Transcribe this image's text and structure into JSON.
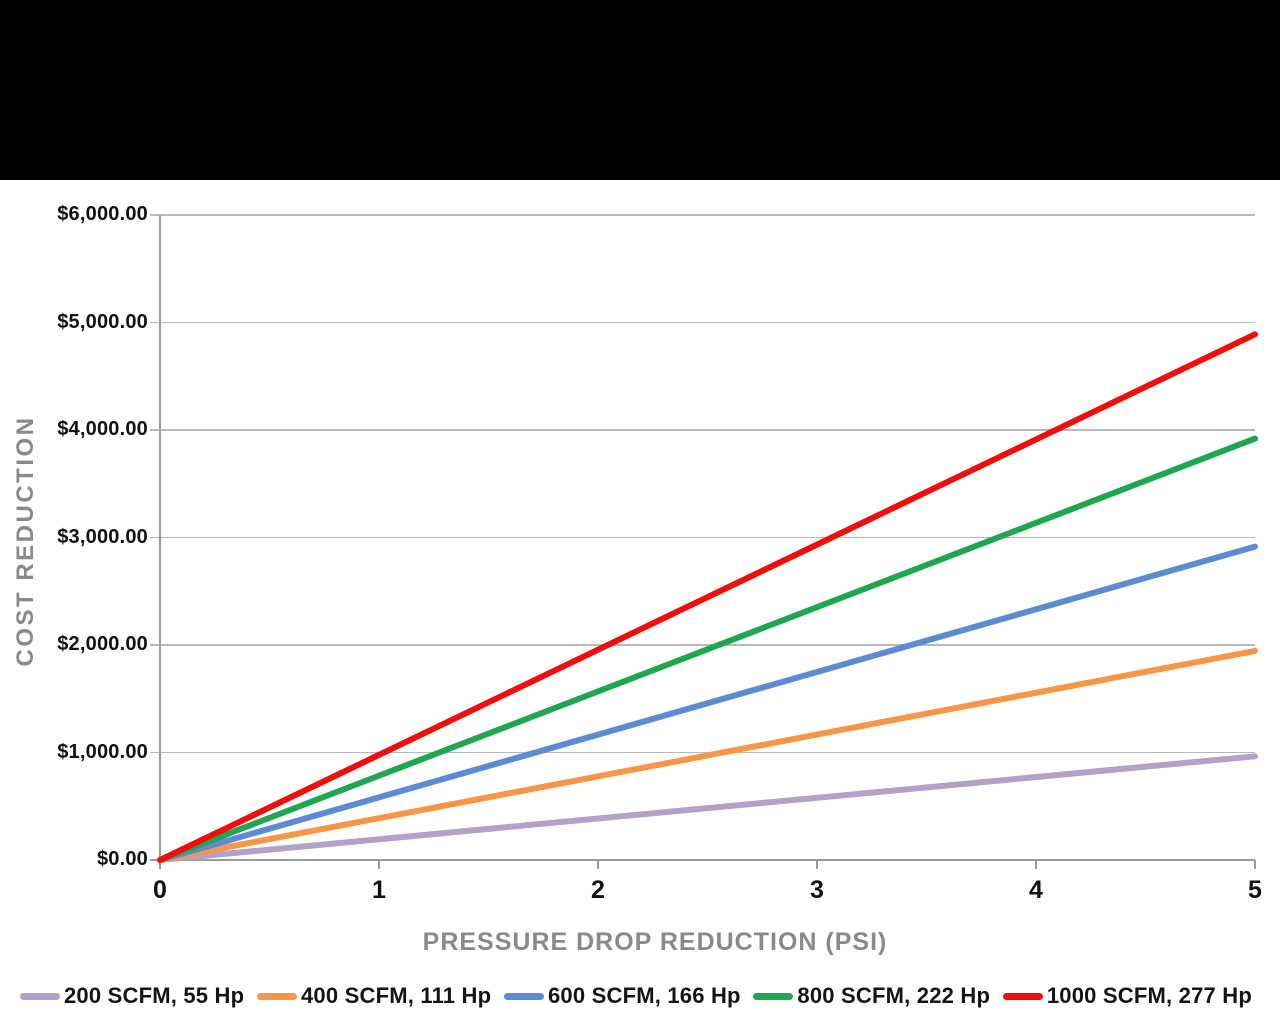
{
  "page": {
    "background": "#ffffff",
    "top_band_color": "#000000"
  },
  "chart_data": {
    "type": "line",
    "title": "",
    "xlabel": "PRESSURE DROP REDUCTION (PSI)",
    "ylabel": "COST REDUCTION",
    "xlim": [
      0,
      5
    ],
    "ylim": [
      0,
      6000
    ],
    "x_ticks": [
      0,
      1,
      2,
      3,
      4,
      5
    ],
    "x_tick_labels": [
      "0",
      "1",
      "2",
      "3",
      "4",
      "5"
    ],
    "y_ticks": [
      0,
      1000,
      2000,
      3000,
      4000,
      5000,
      6000
    ],
    "y_tick_labels": [
      "$0.00",
      "$1,000.00",
      "$2,000.00",
      "$3,000.00",
      "$4,000.00",
      "$5,000.00",
      "$6,000.00"
    ],
    "grid": "horizontal-only",
    "legend_position": "bottom",
    "axis_color": "#9b9b9b",
    "grid_color": "#b9b9b9",
    "axis_title_color": "#8a8a8a",
    "tick_label_color": "#111111",
    "series": [
      {
        "name": "200 SCFM, 55 Hp",
        "color": "#B3A2C7",
        "x": [
          0,
          5
        ],
        "y": [
          0,
          965
        ]
      },
      {
        "name": "400 SCFM, 111 Hp",
        "color": "#F79646",
        "x": [
          0,
          5
        ],
        "y": [
          0,
          1945
        ]
      },
      {
        "name": "600 SCFM, 166 Hp",
        "color": "#5B8BD5",
        "x": [
          0,
          5
        ],
        "y": [
          0,
          2915
        ]
      },
      {
        "name": "800 SCFM, 222 Hp",
        "color": "#1EA750",
        "x": [
          0,
          5
        ],
        "y": [
          0,
          3920
        ]
      },
      {
        "name": "1000 SCFM, 277 Hp",
        "color": "#F20D0D",
        "x": [
          0,
          5
        ],
        "y": [
          0,
          4890
        ]
      }
    ]
  }
}
